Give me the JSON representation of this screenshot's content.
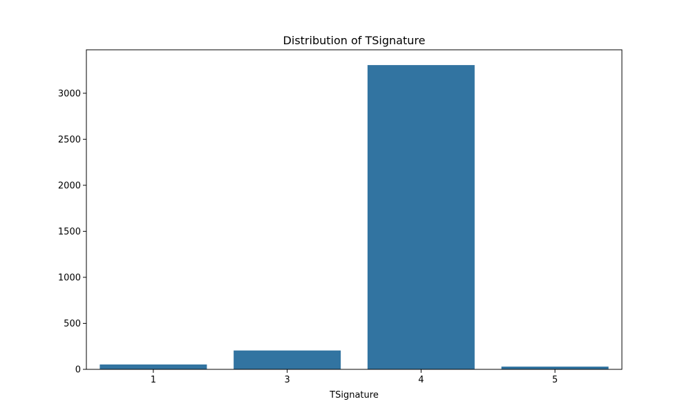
{
  "chart_data": {
    "type": "bar",
    "title": "Distribution of TSignature",
    "xlabel": "TSignature",
    "ylabel": "",
    "categories": [
      "1",
      "3",
      "4",
      "5"
    ],
    "values": [
      53,
      205,
      3306,
      30
    ],
    "ylim": [
      0,
      3472
    ],
    "yticks": [
      0,
      500,
      1000,
      1500,
      2000,
      2500,
      3000
    ],
    "ytick_labels": [
      "0",
      "500",
      "1000",
      "1500",
      "2000",
      "2500",
      "3000"
    ],
    "grid": false,
    "legend": null,
    "bar_color": "#3274a1"
  }
}
